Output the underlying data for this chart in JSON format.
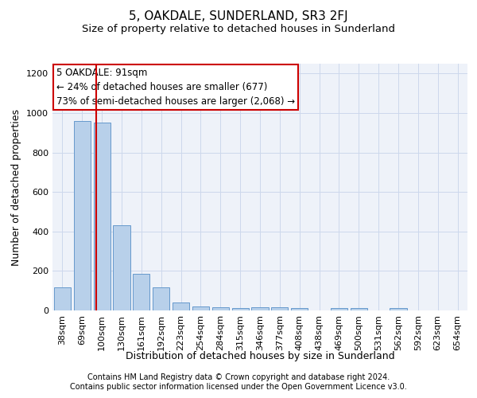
{
  "title": "5, OAKDALE, SUNDERLAND, SR3 2FJ",
  "subtitle": "Size of property relative to detached houses in Sunderland",
  "xlabel": "Distribution of detached houses by size in Sunderland",
  "ylabel": "Number of detached properties",
  "footnote1": "Contains HM Land Registry data © Crown copyright and database right 2024.",
  "footnote2": "Contains public sector information licensed under the Open Government Licence v3.0.",
  "categories": [
    "38sqm",
    "69sqm",
    "100sqm",
    "130sqm",
    "161sqm",
    "192sqm",
    "223sqm",
    "254sqm",
    "284sqm",
    "315sqm",
    "346sqm",
    "377sqm",
    "408sqm",
    "438sqm",
    "469sqm",
    "500sqm",
    "531sqm",
    "562sqm",
    "592sqm",
    "623sqm",
    "654sqm"
  ],
  "values": [
    115,
    960,
    950,
    430,
    185,
    115,
    42,
    20,
    15,
    13,
    15,
    15,
    12,
    0,
    12,
    12,
    0,
    12,
    0,
    0,
    0
  ],
  "bar_color": "#b8d0ea",
  "bar_edge_color": "#6699cc",
  "grid_color": "#ccd8ec",
  "background_color": "#eef2f9",
  "vline_x": 1.72,
  "vline_color": "#cc0000",
  "annotation_text": "5 OAKDALE: 91sqm\n← 24% of detached houses are smaller (677)\n73% of semi-detached houses are larger (2,068) →",
  "annotation_box_color": "#cc0000",
  "ylim": [
    0,
    1250
  ],
  "yticks": [
    0,
    200,
    400,
    600,
    800,
    1000,
    1200
  ],
  "title_fontsize": 11,
  "subtitle_fontsize": 9.5,
  "axis_label_fontsize": 9,
  "tick_fontsize": 8,
  "annotation_fontsize": 8.5,
  "footnote_fontsize": 7
}
